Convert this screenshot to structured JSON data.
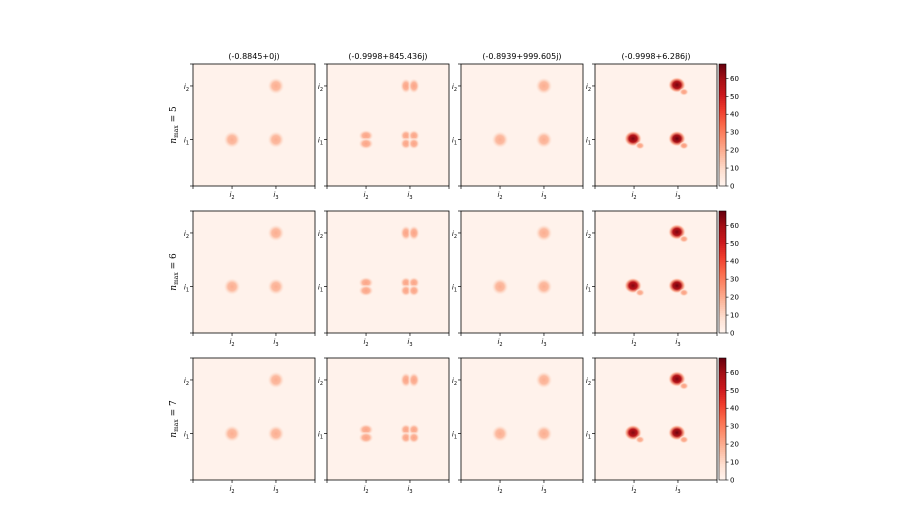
{
  "chart_data": {
    "type": "heatmap",
    "colormap": "Reds",
    "column_titles": [
      "(-0.8845+0j)",
      "(-0.9998+845.436j)",
      "(-0.8939+999.605j)",
      "(-0.9998+6.286j)"
    ],
    "row_labels": [
      {
        "base": "n",
        "sub": "max",
        "suffix": " = 5"
      },
      {
        "base": "n",
        "sub": "max",
        "suffix": " = 6"
      },
      {
        "base": "n",
        "sub": "max",
        "suffix": " = 7"
      }
    ],
    "x_ticks": [
      {
        "base": "i",
        "sub": "2"
      },
      {
        "base": "i",
        "sub": "3"
      }
    ],
    "y_ticks": [
      {
        "base": "i",
        "sub": "2"
      },
      {
        "base": "i",
        "sub": "1"
      }
    ],
    "colorbar": {
      "ticks": [
        0,
        10,
        20,
        30,
        40,
        50,
        60
      ],
      "min": 0,
      "max": 68
    },
    "panels": [
      {
        "row": 0,
        "col": 0,
        "blobs": [
          {
            "x": 0.32,
            "y": 0.38,
            "peak": 20,
            "shape": "round"
          },
          {
            "x": 0.68,
            "y": 0.38,
            "peak": 20,
            "shape": "round"
          },
          {
            "x": 0.68,
            "y": 0.82,
            "peak": 20,
            "shape": "round"
          }
        ]
      },
      {
        "row": 0,
        "col": 1,
        "blobs": [
          {
            "x": 0.32,
            "y": 0.38,
            "peak": 22,
            "shape": "split-h"
          },
          {
            "x": 0.68,
            "y": 0.38,
            "peak": 22,
            "shape": "quad"
          },
          {
            "x": 0.68,
            "y": 0.82,
            "peak": 22,
            "shape": "split-v"
          }
        ]
      },
      {
        "row": 0,
        "col": 2,
        "blobs": [
          {
            "x": 0.32,
            "y": 0.38,
            "peak": 20,
            "shape": "round"
          },
          {
            "x": 0.68,
            "y": 0.38,
            "peak": 20,
            "shape": "round"
          },
          {
            "x": 0.68,
            "y": 0.82,
            "peak": 20,
            "shape": "round"
          }
        ]
      },
      {
        "row": 0,
        "col": 3,
        "blobs": [
          {
            "x": 0.32,
            "y": 0.38,
            "peak": 65,
            "shape": "dipole"
          },
          {
            "x": 0.68,
            "y": 0.38,
            "peak": 68,
            "shape": "dipole"
          },
          {
            "x": 0.68,
            "y": 0.82,
            "peak": 66,
            "shape": "dipole"
          }
        ]
      },
      {
        "row": 1,
        "col": 0,
        "blobs": [
          {
            "x": 0.32,
            "y": 0.38,
            "peak": 20,
            "shape": "round"
          },
          {
            "x": 0.68,
            "y": 0.38,
            "peak": 20,
            "shape": "round"
          },
          {
            "x": 0.68,
            "y": 0.82,
            "peak": 20,
            "shape": "round"
          }
        ]
      },
      {
        "row": 1,
        "col": 1,
        "blobs": [
          {
            "x": 0.32,
            "y": 0.38,
            "peak": 22,
            "shape": "split-h"
          },
          {
            "x": 0.68,
            "y": 0.38,
            "peak": 22,
            "shape": "quad"
          },
          {
            "x": 0.68,
            "y": 0.82,
            "peak": 22,
            "shape": "split-v"
          }
        ]
      },
      {
        "row": 1,
        "col": 2,
        "blobs": [
          {
            "x": 0.32,
            "y": 0.38,
            "peak": 20,
            "shape": "round"
          },
          {
            "x": 0.68,
            "y": 0.38,
            "peak": 20,
            "shape": "round"
          },
          {
            "x": 0.68,
            "y": 0.82,
            "peak": 20,
            "shape": "round"
          }
        ]
      },
      {
        "row": 1,
        "col": 3,
        "blobs": [
          {
            "x": 0.32,
            "y": 0.38,
            "peak": 64,
            "shape": "dipole"
          },
          {
            "x": 0.68,
            "y": 0.38,
            "peak": 67,
            "shape": "dipole"
          },
          {
            "x": 0.68,
            "y": 0.82,
            "peak": 65,
            "shape": "dipole"
          }
        ]
      },
      {
        "row": 2,
        "col": 0,
        "blobs": [
          {
            "x": 0.32,
            "y": 0.38,
            "peak": 20,
            "shape": "round"
          },
          {
            "x": 0.68,
            "y": 0.38,
            "peak": 20,
            "shape": "round"
          },
          {
            "x": 0.68,
            "y": 0.82,
            "peak": 20,
            "shape": "round"
          }
        ]
      },
      {
        "row": 2,
        "col": 1,
        "blobs": [
          {
            "x": 0.32,
            "y": 0.38,
            "peak": 22,
            "shape": "split-h"
          },
          {
            "x": 0.68,
            "y": 0.38,
            "peak": 22,
            "shape": "quad"
          },
          {
            "x": 0.68,
            "y": 0.82,
            "peak": 22,
            "shape": "split-v"
          }
        ]
      },
      {
        "row": 2,
        "col": 2,
        "blobs": [
          {
            "x": 0.32,
            "y": 0.38,
            "peak": 20,
            "shape": "round"
          },
          {
            "x": 0.68,
            "y": 0.38,
            "peak": 20,
            "shape": "round"
          },
          {
            "x": 0.68,
            "y": 0.82,
            "peak": 20,
            "shape": "round"
          }
        ]
      },
      {
        "row": 2,
        "col": 3,
        "blobs": [
          {
            "x": 0.32,
            "y": 0.38,
            "peak": 64,
            "shape": "dipole"
          },
          {
            "x": 0.68,
            "y": 0.38,
            "peak": 67,
            "shape": "dipole"
          },
          {
            "x": 0.68,
            "y": 0.82,
            "peak": 65,
            "shape": "dipole"
          }
        ]
      }
    ]
  }
}
